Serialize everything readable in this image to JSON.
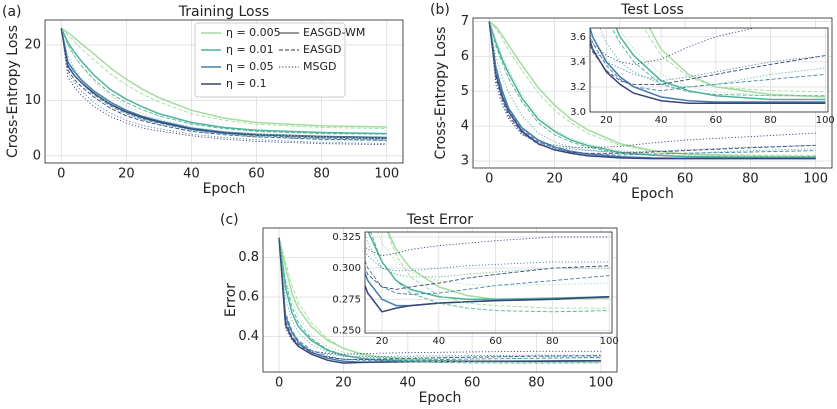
{
  "chart_data": [
    {
      "type": "line",
      "label": "(a)",
      "title": "Training Loss",
      "xlabel": "Epoch",
      "ylabel": "Cross-Entropy Loss",
      "x": [
        0,
        2,
        4,
        6,
        10,
        15,
        20,
        25,
        30,
        40,
        50,
        60,
        80,
        100
      ],
      "xlim": [
        -5,
        105
      ],
      "xticks": [
        0,
        20,
        40,
        60,
        80,
        100
      ],
      "ylim": [
        -1.3,
        24.5
      ],
      "yticks": [
        0,
        10,
        20
      ],
      "grid": true,
      "legend": {
        "position": "upper right",
        "entries": [
          {
            "label": "η = 0.005",
            "color": "#a3dca0"
          },
          {
            "label": "η = 0.01",
            "color": "#4eb39a"
          },
          {
            "label": "η = 0.05",
            "color": "#4380ad"
          },
          {
            "label": "η = 0.1",
            "color": "#3a4478"
          }
        ],
        "methods": [
          {
            "label": "EASGD-WM",
            "style": "solid"
          },
          {
            "label": "EASGD",
            "style": "dashed"
          },
          {
            "label": "MSGD",
            "style": "dotted"
          }
        ]
      },
      "series": [
        {
          "name": "η = 0.005",
          "method": "EASGD-WM",
          "color": "#a3dca0",
          "style": "solid",
          "values": [
            23,
            22.2,
            21.3,
            20.3,
            18.4,
            15.9,
            13.8,
            12.0,
            10.5,
            8.2,
            6.8,
            6.0,
            5.4,
            5.2
          ]
        },
        {
          "name": "η = 0.01",
          "method": "EASGD-WM",
          "color": "#4eb39a",
          "style": "solid",
          "values": [
            23,
            20.5,
            18.7,
            17.2,
            14.6,
            12.0,
            10.2,
            8.8,
            7.6,
            6.0,
            5.1,
            4.6,
            4.2,
            4.0
          ]
        },
        {
          "name": "η = 0.05",
          "method": "EASGD-WM",
          "color": "#4380ad",
          "style": "solid",
          "values": [
            23,
            17.0,
            15.2,
            13.8,
            11.7,
            9.7,
            8.2,
            7.1,
            6.3,
            5.0,
            4.3,
            3.9,
            3.5,
            3.3
          ]
        },
        {
          "name": "η = 0.1",
          "method": "EASGD-WM",
          "color": "#3a4478",
          "style": "solid",
          "values": [
            23,
            16.2,
            14.5,
            13.3,
            11.3,
            9.3,
            7.9,
            6.9,
            6.1,
            4.8,
            4.1,
            3.8,
            3.4,
            3.2
          ]
        },
        {
          "name": "η = 0.005",
          "method": "EASGD",
          "color": "#a3dca0",
          "style": "dashed",
          "values": [
            23,
            21.8,
            20.6,
            19.4,
            17.3,
            14.8,
            12.8,
            11.1,
            9.7,
            7.6,
            6.4,
            5.7,
            5.1,
            4.9
          ]
        },
        {
          "name": "η = 0.01",
          "method": "EASGD",
          "color": "#4eb39a",
          "style": "dashed",
          "values": [
            23,
            20.0,
            18.0,
            16.4,
            13.8,
            11.3,
            9.6,
            8.3,
            7.2,
            5.7,
            4.9,
            4.4,
            4.0,
            3.9
          ]
        },
        {
          "name": "η = 0.05",
          "method": "EASGD",
          "color": "#4380ad",
          "style": "dashed",
          "values": [
            23,
            16.5,
            14.6,
            13.2,
            11.0,
            9.0,
            7.6,
            6.6,
            5.9,
            4.7,
            4.0,
            3.6,
            3.2,
            3.0
          ]
        },
        {
          "name": "η = 0.1",
          "method": "EASGD",
          "color": "#3a4478",
          "style": "dashed",
          "values": [
            23,
            15.5,
            13.8,
            12.6,
            10.6,
            8.6,
            7.2,
            6.3,
            5.6,
            4.4,
            3.8,
            3.4,
            3.0,
            2.8
          ]
        },
        {
          "name": "η = 0.005",
          "method": "MSGD",
          "color": "#a3dca0",
          "style": "dotted",
          "values": [
            23,
            20.0,
            18.0,
            16.3,
            13.5,
            10.8,
            9.0,
            7.6,
            6.6,
            5.2,
            4.4,
            3.9,
            3.4,
            3.2
          ]
        },
        {
          "name": "η = 0.01",
          "method": "MSGD",
          "color": "#4eb39a",
          "style": "dotted",
          "values": [
            23,
            18.0,
            15.7,
            14.0,
            11.5,
            9.2,
            7.6,
            6.5,
            5.7,
            4.5,
            3.8,
            3.4,
            2.9,
            2.7
          ]
        },
        {
          "name": "η = 0.05",
          "method": "MSGD",
          "color": "#4380ad",
          "style": "dotted",
          "values": [
            23,
            15.0,
            13.2,
            11.8,
            9.6,
            7.7,
            6.4,
            5.5,
            4.9,
            3.9,
            3.3,
            2.9,
            2.4,
            2.2
          ]
        },
        {
          "name": "η = 0.1",
          "method": "MSGD",
          "color": "#3a4478",
          "style": "dotted",
          "values": [
            23,
            14.2,
            12.4,
            11.0,
            8.9,
            7.1,
            5.9,
            5.0,
            4.5,
            3.6,
            3.0,
            2.6,
            2.2,
            2.0
          ]
        }
      ]
    },
    {
      "type": "line",
      "label": "(b)",
      "title": "Test Loss",
      "xlabel": "Epoch",
      "ylabel": "Cross-Entropy Loss",
      "x": [
        0,
        2,
        4,
        6,
        10,
        15,
        20,
        25,
        30,
        40,
        50,
        60,
        80,
        100
      ],
      "xlim": [
        -5,
        105
      ],
      "xticks": [
        0,
        20,
        40,
        60,
        80,
        100
      ],
      "ylim": [
        2.8,
        7.1
      ],
      "yticks": [
        3,
        4,
        5,
        6,
        7
      ],
      "grid": true,
      "inset": {
        "xlim": [
          14,
          101
        ],
        "xticks": [
          20,
          40,
          60,
          80,
          100
        ],
        "ylim": [
          3.0,
          3.67
        ],
        "yticks": [
          {
            "value": 3.0,
            "label": "3.0"
          },
          3.2,
          3.4,
          3.6
        ]
      },
      "series": [
        {
          "name": "η = 0.005",
          "method": "EASGD-WM",
          "color": "#a3dca0",
          "style": "solid",
          "values": [
            7.0,
            6.85,
            6.6,
            6.3,
            5.75,
            5.1,
            4.6,
            4.2,
            3.9,
            3.5,
            3.3,
            3.2,
            3.14,
            3.12
          ]
        },
        {
          "name": "η = 0.01",
          "method": "EASGD-WM",
          "color": "#4eb39a",
          "style": "solid",
          "values": [
            7.0,
            6.4,
            5.9,
            5.5,
            4.8,
            4.2,
            3.85,
            3.6,
            3.45,
            3.25,
            3.17,
            3.13,
            3.1,
            3.1
          ]
        },
        {
          "name": "η = 0.05",
          "method": "EASGD-WM",
          "color": "#4380ad",
          "style": "solid",
          "values": [
            7.0,
            5.7,
            5.0,
            4.5,
            3.95,
            3.6,
            3.4,
            3.28,
            3.2,
            3.12,
            3.09,
            3.08,
            3.08,
            3.08
          ]
        },
        {
          "name": "η = 0.1",
          "method": "EASGD-WM",
          "color": "#3a4478",
          "style": "solid",
          "values": [
            7.0,
            5.5,
            4.85,
            4.4,
            3.85,
            3.5,
            3.32,
            3.22,
            3.15,
            3.09,
            3.07,
            3.07,
            3.07,
            3.07
          ]
        },
        {
          "name": "η = 0.005",
          "method": "EASGD",
          "color": "#a3dca0",
          "style": "dashed",
          "values": [
            7.0,
            6.8,
            6.5,
            6.15,
            5.6,
            4.95,
            4.45,
            4.1,
            3.8,
            3.45,
            3.28,
            3.2,
            3.17,
            3.16
          ]
        },
        {
          "name": "η = 0.01",
          "method": "EASGD",
          "color": "#4eb39a",
          "style": "dashed",
          "values": [
            7.0,
            6.3,
            5.8,
            5.35,
            4.7,
            4.1,
            3.75,
            3.55,
            3.4,
            3.22,
            3.16,
            3.14,
            3.13,
            3.13
          ]
        },
        {
          "name": "η = 0.05",
          "method": "EASGD",
          "color": "#4380ad",
          "style": "dashed",
          "values": [
            7.0,
            5.6,
            4.9,
            4.45,
            3.9,
            3.55,
            3.37,
            3.26,
            3.2,
            3.17,
            3.2,
            3.22,
            3.26,
            3.3
          ]
        },
        {
          "name": "η = 0.1",
          "method": "EASGD",
          "color": "#3a4478",
          "style": "dashed",
          "values": [
            7.0,
            5.4,
            4.75,
            4.3,
            3.8,
            3.48,
            3.33,
            3.25,
            3.22,
            3.22,
            3.26,
            3.3,
            3.38,
            3.45
          ]
        },
        {
          "name": "η = 0.005",
          "method": "MSGD",
          "color": "#a3dca0",
          "style": "dotted",
          "values": [
            7.0,
            6.5,
            6.0,
            5.6,
            4.9,
            4.3,
            3.9,
            3.65,
            3.5,
            3.3,
            3.2,
            3.16,
            3.13,
            3.12
          ]
        },
        {
          "name": "η = 0.01",
          "method": "MSGD",
          "color": "#4eb39a",
          "style": "dotted",
          "values": [
            7.0,
            6.0,
            5.4,
            4.95,
            4.3,
            3.8,
            3.55,
            3.4,
            3.32,
            3.22,
            3.2,
            3.22,
            3.3,
            3.35
          ]
        },
        {
          "name": "η = 0.05",
          "method": "MSGD",
          "color": "#4380ad",
          "style": "dotted",
          "values": [
            7.0,
            5.3,
            4.7,
            4.25,
            3.8,
            3.5,
            3.4,
            3.35,
            3.3,
            3.25,
            3.28,
            3.32,
            3.4,
            3.45
          ]
        },
        {
          "name": "η = 0.1",
          "method": "MSGD",
          "color": "#3a4478",
          "style": "dotted",
          "values": [
            7.0,
            5.2,
            4.6,
            4.2,
            3.75,
            3.55,
            3.45,
            3.4,
            3.38,
            3.42,
            3.52,
            3.6,
            3.7,
            3.8
          ]
        }
      ]
    },
    {
      "type": "line",
      "label": "(c)",
      "title": "Test Error",
      "xlabel": "Epoch",
      "ylabel": "Error",
      "x": [
        0,
        2,
        4,
        6,
        10,
        15,
        20,
        25,
        30,
        40,
        50,
        60,
        80,
        100
      ],
      "xlim": [
        -5,
        105
      ],
      "xticks": [
        0,
        20,
        40,
        60,
        80,
        100
      ],
      "ylim": [
        0.22,
        0.95
      ],
      "yticks": [
        0.4,
        0.6,
        0.8
      ],
      "grid": true,
      "inset": {
        "xlim": [
          14,
          101
        ],
        "xticks": [
          20,
          40,
          60,
          80,
          100
        ],
        "ylim": [
          0.248,
          0.329
        ],
        "yticks": [
          {
            "value": 0.25,
            "label": "0.250"
          },
          0.275,
          {
            "value": 0.3,
            "label": "0.300"
          },
          0.325
        ]
      },
      "series": [
        {
          "name": "η = 0.005",
          "method": "EASGD-WM",
          "color": "#a3dca0",
          "style": "solid",
          "values": [
            0.9,
            0.75,
            0.62,
            0.54,
            0.45,
            0.38,
            0.34,
            0.315,
            0.3,
            0.285,
            0.278,
            0.275,
            0.275,
            0.276
          ]
        },
        {
          "name": "η = 0.01",
          "method": "EASGD-WM",
          "color": "#4eb39a",
          "style": "solid",
          "values": [
            0.9,
            0.65,
            0.52,
            0.45,
            0.38,
            0.33,
            0.305,
            0.29,
            0.283,
            0.277,
            0.275,
            0.275,
            0.276,
            0.277
          ]
        },
        {
          "name": "η = 0.05",
          "method": "EASGD-WM",
          "color": "#4380ad",
          "style": "solid",
          "values": [
            0.9,
            0.5,
            0.42,
            0.37,
            0.32,
            0.29,
            0.275,
            0.27,
            0.27,
            0.272,
            0.273,
            0.274,
            0.275,
            0.277
          ]
        },
        {
          "name": "η = 0.1",
          "method": "EASGD-WM",
          "color": "#3a4478",
          "style": "solid",
          "values": [
            0.9,
            0.46,
            0.39,
            0.35,
            0.31,
            0.28,
            0.265,
            0.268,
            0.27,
            0.272,
            0.273,
            0.274,
            0.275,
            0.277
          ]
        },
        {
          "name": "η = 0.005",
          "method": "EASGD",
          "color": "#a3dca0",
          "style": "dashed",
          "values": [
            0.9,
            0.78,
            0.66,
            0.57,
            0.47,
            0.39,
            0.34,
            0.31,
            0.293,
            0.278,
            0.272,
            0.27,
            0.268,
            0.268
          ]
        },
        {
          "name": "η = 0.01",
          "method": "EASGD",
          "color": "#4eb39a",
          "style": "dashed",
          "values": [
            0.9,
            0.68,
            0.55,
            0.47,
            0.39,
            0.335,
            0.305,
            0.29,
            0.28,
            0.272,
            0.268,
            0.266,
            0.265,
            0.266
          ]
        },
        {
          "name": "η = 0.05",
          "method": "EASGD",
          "color": "#4380ad",
          "style": "dashed",
          "values": [
            0.9,
            0.52,
            0.43,
            0.38,
            0.33,
            0.3,
            0.285,
            0.28,
            0.279,
            0.28,
            0.283,
            0.286,
            0.29,
            0.294
          ]
        },
        {
          "name": "η = 0.1",
          "method": "EASGD",
          "color": "#3a4478",
          "style": "dashed",
          "values": [
            0.9,
            0.48,
            0.4,
            0.36,
            0.32,
            0.295,
            0.285,
            0.283,
            0.285,
            0.288,
            0.292,
            0.295,
            0.3,
            0.302
          ]
        },
        {
          "name": "η = 0.005",
          "method": "MSGD",
          "color": "#a3dca0",
          "style": "dotted",
          "values": [
            0.9,
            0.7,
            0.58,
            0.5,
            0.41,
            0.35,
            0.32,
            0.305,
            0.297,
            0.29,
            0.287,
            0.286,
            0.287,
            0.288
          ]
        },
        {
          "name": "η = 0.01",
          "method": "MSGD",
          "color": "#4eb39a",
          "style": "dotted",
          "values": [
            0.9,
            0.6,
            0.48,
            0.42,
            0.36,
            0.32,
            0.3,
            0.295,
            0.293,
            0.293,
            0.295,
            0.297,
            0.3,
            0.3
          ]
        },
        {
          "name": "η = 0.05",
          "method": "MSGD",
          "color": "#4380ad",
          "style": "dotted",
          "values": [
            0.9,
            0.47,
            0.4,
            0.36,
            0.33,
            0.31,
            0.3,
            0.298,
            0.298,
            0.3,
            0.302,
            0.303,
            0.305,
            0.305
          ]
        },
        {
          "name": "η = 0.1",
          "method": "MSGD",
          "color": "#3a4478",
          "style": "dotted",
          "values": [
            0.9,
            0.44,
            0.38,
            0.35,
            0.325,
            0.315,
            0.31,
            0.312,
            0.315,
            0.318,
            0.32,
            0.322,
            0.325,
            0.325
          ]
        }
      ]
    }
  ]
}
